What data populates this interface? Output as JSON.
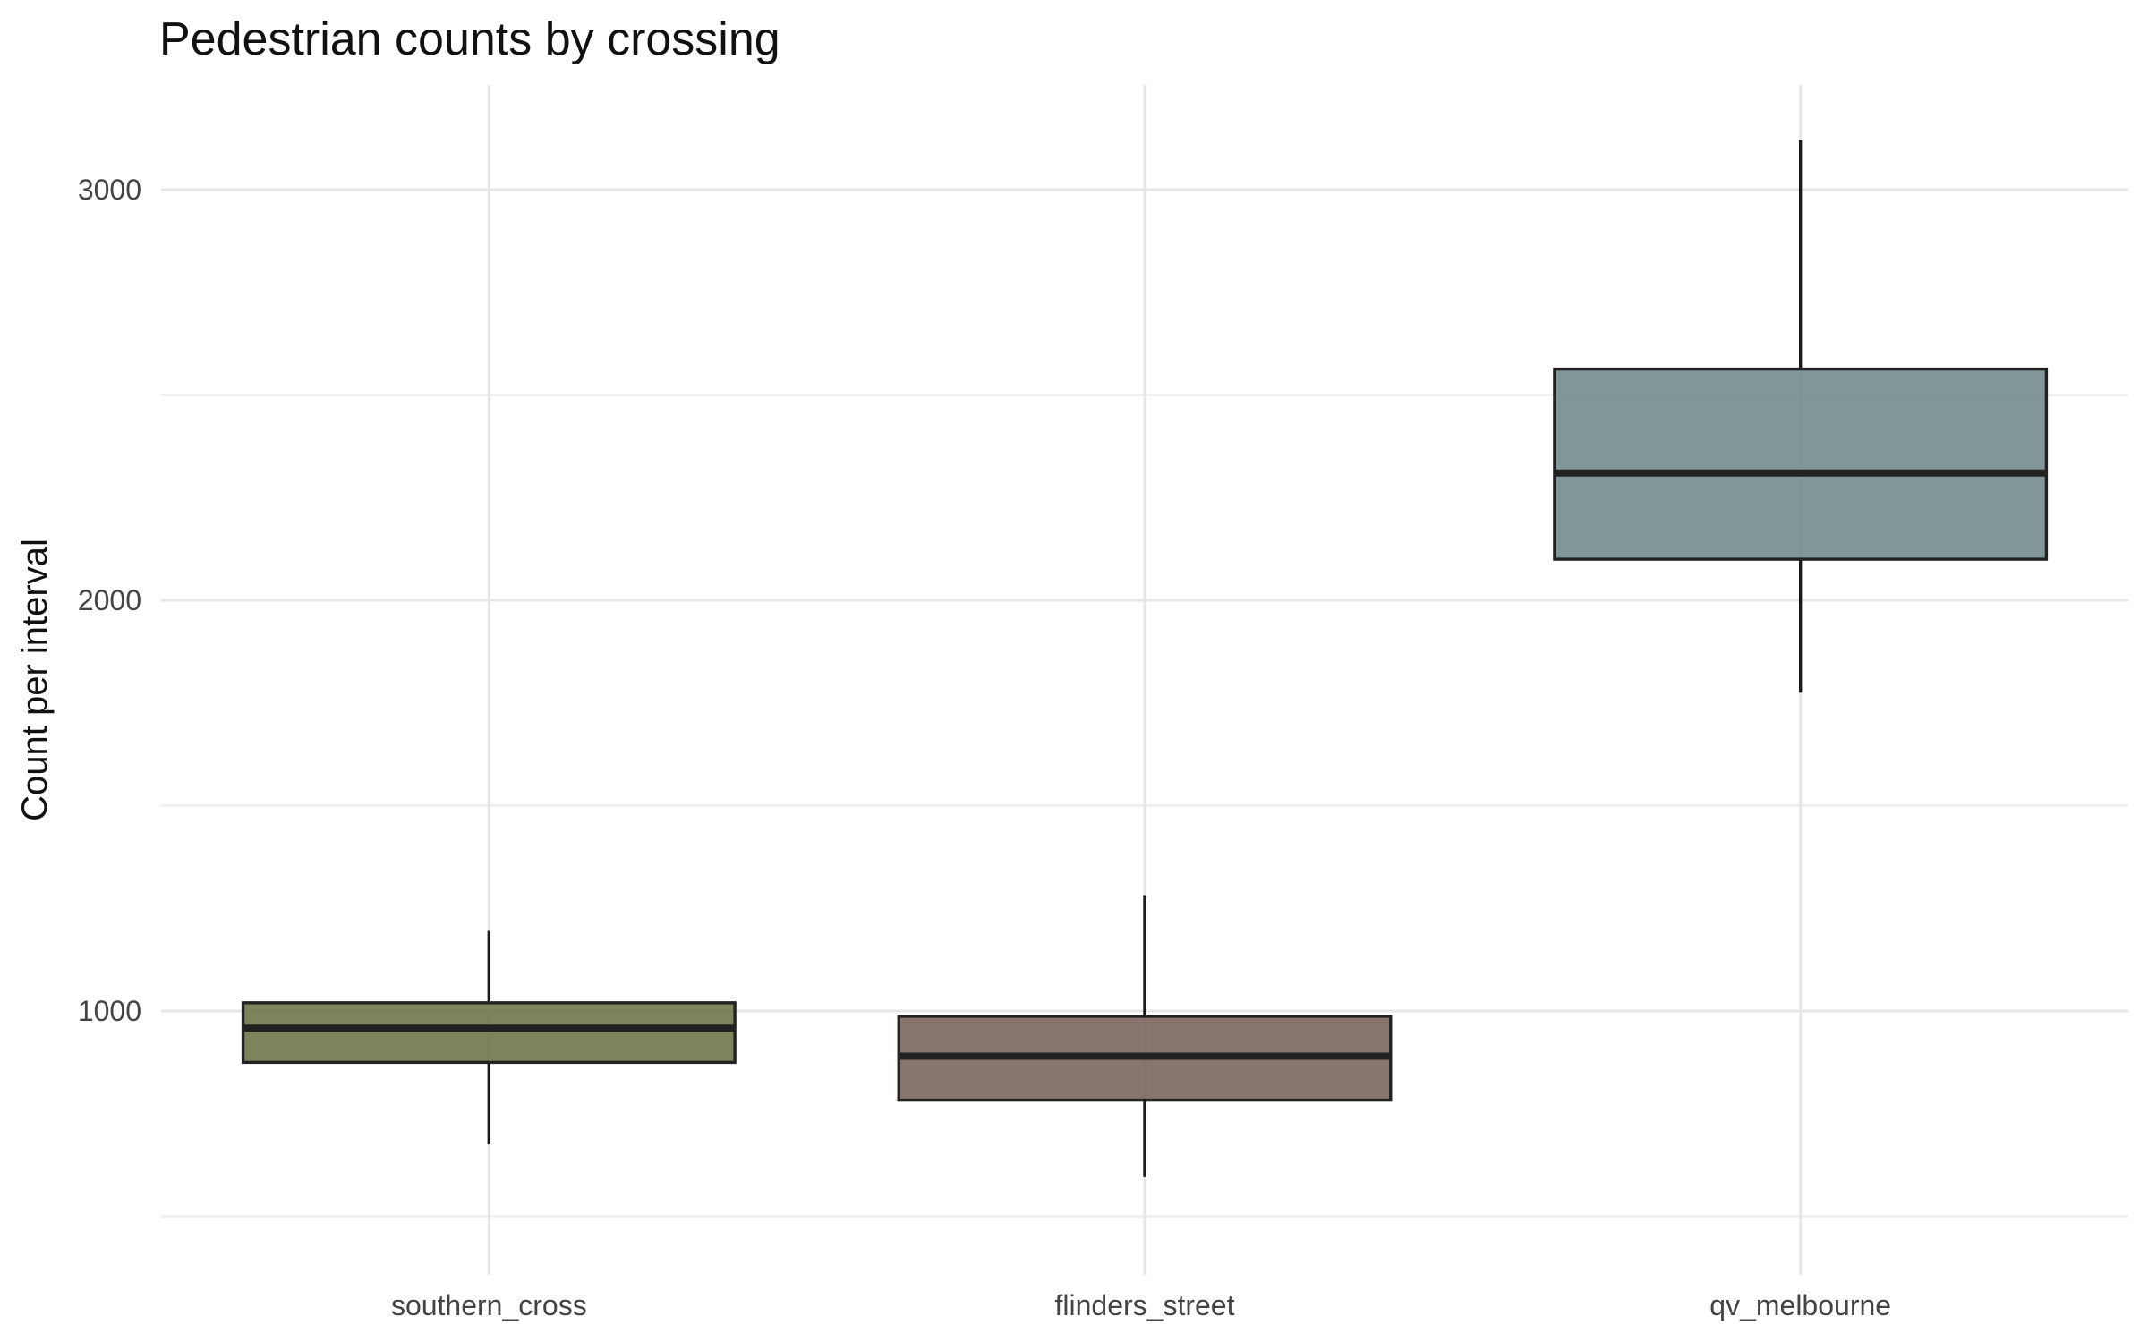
{
  "chart_data": {
    "type": "boxplot",
    "title": "Pedestrian counts by crossing",
    "xlabel": "",
    "ylabel": "Count per interval",
    "ylim": [
      500,
      3250
    ],
    "yticks": [
      1000,
      2000,
      3000
    ],
    "grid": true,
    "categories": [
      "southern_cross",
      "flinders_street",
      "qv_melbourne"
    ],
    "boxes": [
      {
        "category": "southern_cross",
        "color": "#6b7345",
        "whisker_low": 675,
        "q1": 875,
        "median": 958,
        "q3": 1020,
        "whisker_high": 1195
      },
      {
        "category": "flinders_street",
        "color": "#76625a",
        "whisker_low": 595,
        "q1": 783,
        "median": 890,
        "q3": 987,
        "whisker_high": 1282
      },
      {
        "category": "qv_melbourne",
        "color": "#6e878b",
        "whisker_low": 1775,
        "q1": 2100,
        "median": 2310,
        "q3": 2563,
        "whisker_high": 3122
      }
    ]
  }
}
